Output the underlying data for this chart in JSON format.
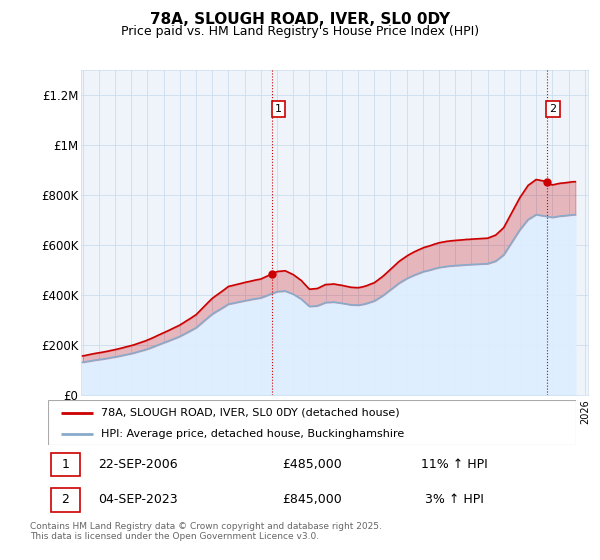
{
  "title": "78A, SLOUGH ROAD, IVER, SL0 0DY",
  "subtitle": "Price paid vs. HM Land Registry's House Price Index (HPI)",
  "ylabel_ticks": [
    "£0",
    "£200K",
    "£400K",
    "£600K",
    "£800K",
    "£1M",
    "£1.2M"
  ],
  "ytick_values": [
    0,
    200000,
    400000,
    600000,
    800000,
    1000000,
    1200000
  ],
  "ylim": [
    0,
    1300000
  ],
  "xlim_start": 1994.9,
  "xlim_end": 2026.2,
  "legend_line1": "78A, SLOUGH ROAD, IVER, SL0 0DY (detached house)",
  "legend_line2": "HPI: Average price, detached house, Buckinghamshire",
  "transaction1_date": "22-SEP-2006",
  "transaction1_price": "£485,000",
  "transaction1_hpi": "11% ↑ HPI",
  "transaction1_year": 2006.72,
  "transaction1_value": 485000,
  "transaction2_date": "04-SEP-2023",
  "transaction2_price": "£845,000",
  "transaction2_hpi": "3% ↑ HPI",
  "transaction2_year": 2023.67,
  "transaction2_value": 845000,
  "footer": "Contains HM Land Registry data © Crown copyright and database right 2025.\nThis data is licensed under the Open Government Licence v3.0.",
  "red_color": "#cc0000",
  "blue_color": "#88aacc",
  "blue_fill_color": "#ddeeff",
  "grid_color": "#ccddee",
  "chart_bg": "#eef4fa",
  "background_color": "#ffffff"
}
